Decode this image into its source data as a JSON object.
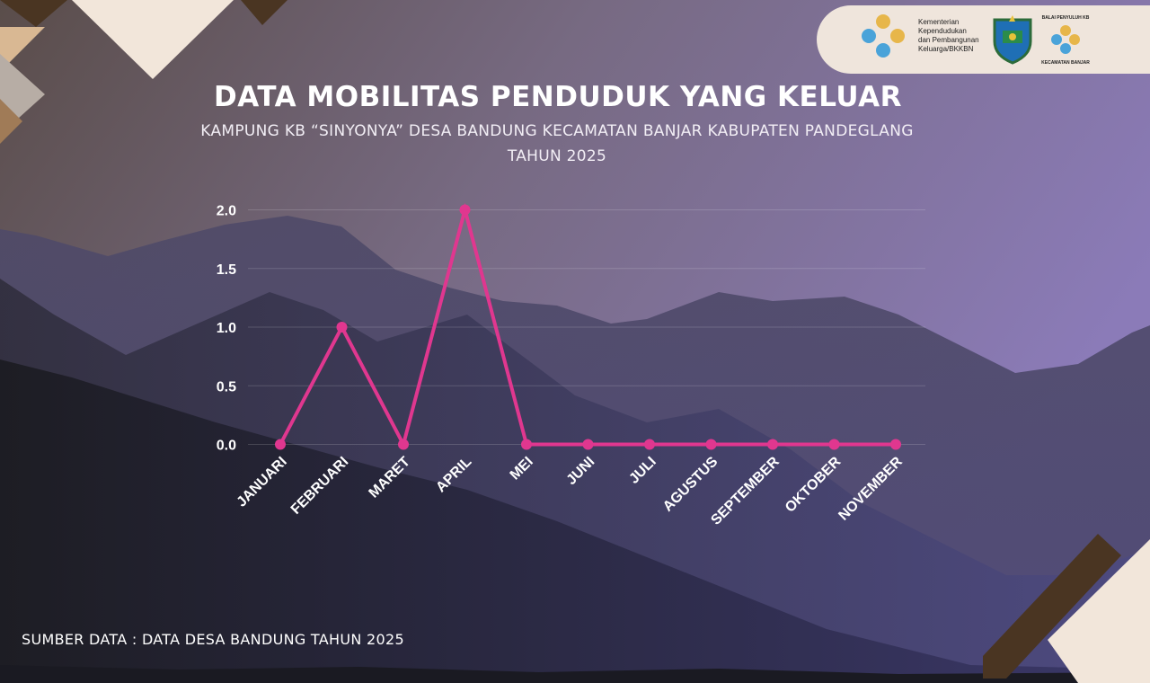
{
  "header": {
    "title": "DATA MOBILITAS PENDUDUK YANG KELUAR",
    "subtitle_line1": "KAMPUNG KB “SINYONYA” DESA BANDUNG KECAMATAN BANJAR KABUPATEN PANDEGLANG",
    "subtitle_line2": "TAHUN 2025"
  },
  "logos": {
    "bkkbn_text": [
      "Kementerian",
      "Kependudukan",
      "dan Pembangunan",
      "Keluarga/BKKBN"
    ],
    "balai_text_top": "BALAI PENYULUH KB",
    "balai_text_bottom": "KECAMATAN BANJAR"
  },
  "footer": {
    "source": "SUMBER DATA : DATA DESA BANDUNG TAHUN 2025"
  },
  "colors": {
    "line": "#e0378f",
    "accent_cream": "#f2e6da",
    "accent_brown": "#4a3522"
  },
  "chart_data": {
    "type": "line",
    "categories": [
      "JANUARI",
      "FEBRUARI",
      "MARET",
      "APRIL",
      "MEI",
      "JUNI",
      "JULI",
      "AGUSTUS",
      "SEPTEMBER",
      "OKTOBER",
      "NOVEMBER"
    ],
    "series": [
      {
        "values": [
          0,
          1,
          0,
          2,
          0,
          0,
          0,
          0,
          0,
          0,
          0
        ]
      }
    ],
    "yticks": [
      "0.0",
      "0.5",
      "1.0",
      "1.5",
      "2.0"
    ],
    "ylim": [
      0,
      2
    ],
    "grid": true,
    "legend": "none"
  }
}
